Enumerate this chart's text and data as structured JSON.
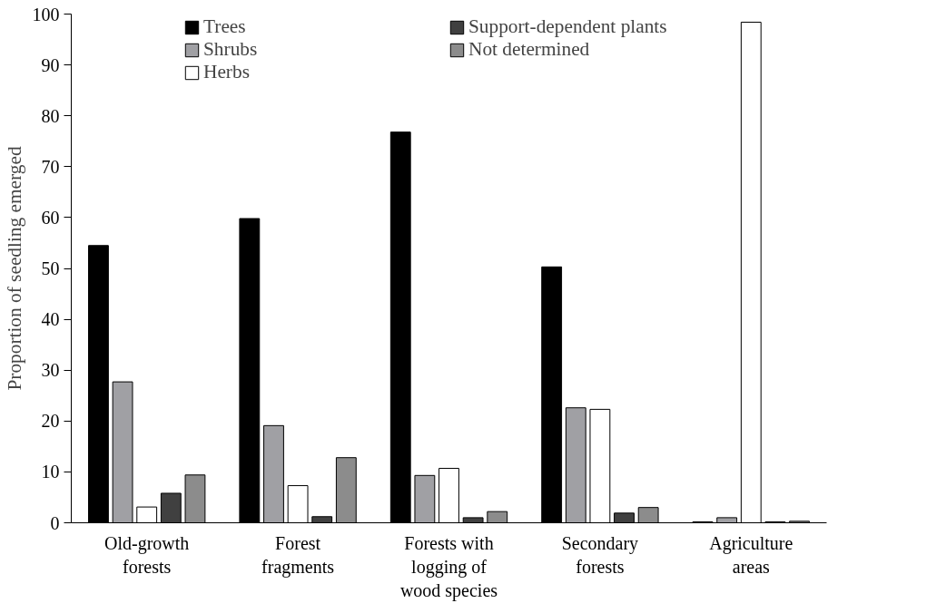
{
  "chart_data": {
    "type": "bar",
    "ylabel": "Proportion of seedling emerged",
    "categories": [
      "Old-growth\nforests",
      "Forest\nfragments",
      "Forests with\nlogging of\nwood species",
      "Secondary\nforests",
      "Agriculture\nareas"
    ],
    "series": [
      {
        "name": "Trees",
        "color": "#000000",
        "values": [
          54.5,
          59.8,
          76.8,
          50.3,
          0.2
        ]
      },
      {
        "name": "Shrubs",
        "color": "#a0a0a4",
        "values": [
          27.7,
          19.1,
          9.3,
          22.6,
          1.0
        ]
      },
      {
        "name": "Herbs",
        "color": "#ffffff",
        "values": [
          3.1,
          7.3,
          10.7,
          22.3,
          98.4
        ]
      },
      {
        "name": "Support-dependent plants",
        "color": "#404040",
        "values": [
          5.8,
          1.2,
          1.0,
          1.9,
          0.2
        ]
      },
      {
        "name": "Not determined",
        "color": "#8c8c8c",
        "values": [
          9.4,
          12.8,
          2.2,
          3.0,
          0.3
        ]
      }
    ],
    "ylim": [
      0,
      100
    ],
    "yticks": [
      0,
      10,
      20,
      30,
      40,
      50,
      60,
      70,
      80,
      90,
      100
    ],
    "grid": false,
    "legend": "top"
  }
}
